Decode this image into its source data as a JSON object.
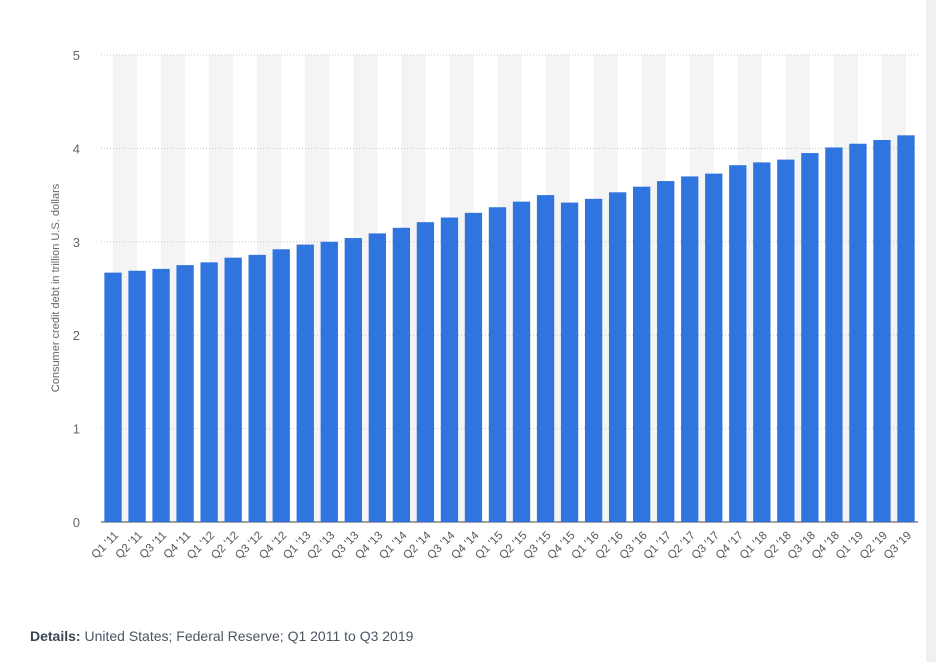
{
  "chart_data": {
    "type": "bar",
    "ylabel": "Consumer credit debt in trillion U.S. dollars",
    "xlabel": "",
    "ylim": [
      0,
      5
    ],
    "yticks": [
      0,
      1,
      2,
      3,
      4,
      5
    ],
    "grid": true,
    "bar_color": "#2f74df",
    "band_color": "#f4f4f4",
    "categories": [
      "Q1 '11",
      "Q2 '11",
      "Q3 '11",
      "Q4 '11",
      "Q1 '12",
      "Q2 '12",
      "Q3 '12",
      "Q4 '12",
      "Q1 '13",
      "Q2 '13",
      "Q3 '13",
      "Q4 '13",
      "Q1 '14",
      "Q2 '14",
      "Q3 '14",
      "Q4 '14",
      "Q1 '15",
      "Q2 '15",
      "Q3 '15",
      "Q4 '15",
      "Q1 '16",
      "Q2 '16",
      "Q3 '16",
      "Q1 '17",
      "Q2 '17",
      "Q3 '17",
      "Q4 '17",
      "Q1 '18",
      "Q2 '18",
      "Q3 '18",
      "Q4 '18",
      "Q1 '19",
      "Q2 '19",
      "Q3 '19"
    ],
    "values": [
      2.67,
      2.69,
      2.71,
      2.75,
      2.78,
      2.83,
      2.86,
      2.92,
      2.97,
      3.0,
      3.04,
      3.09,
      3.15,
      3.21,
      3.26,
      3.31,
      3.37,
      3.43,
      3.5,
      3.42,
      3.46,
      3.53,
      3.59,
      3.65,
      3.7,
      3.73,
      3.82,
      3.85,
      3.88,
      3.95,
      4.01,
      4.05,
      4.09,
      4.14
    ]
  },
  "details": {
    "label": "Details:",
    "text": "United States; Federal Reserve; Q1 2011 to Q3 2019"
  }
}
